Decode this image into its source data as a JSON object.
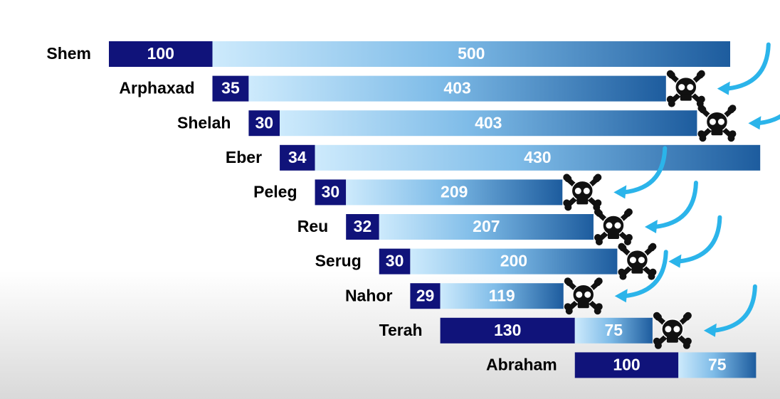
{
  "chart_data": {
    "type": "bar",
    "categories": [
      "Shem",
      "Arphaxad",
      "Shelah",
      "Eber",
      "Peleg",
      "Reu",
      "Serug",
      "Nahor",
      "Terah",
      "Abraham"
    ],
    "series": [
      {
        "color": "#10137a",
        "values": [
          100,
          35,
          30,
          34,
          30,
          32,
          30,
          29,
          130,
          100
        ]
      },
      {
        "color": "#1d5c9e",
        "values": [
          500,
          403,
          403,
          430,
          209,
          207,
          200,
          119,
          75,
          75
        ]
      }
    ]
  }
}
